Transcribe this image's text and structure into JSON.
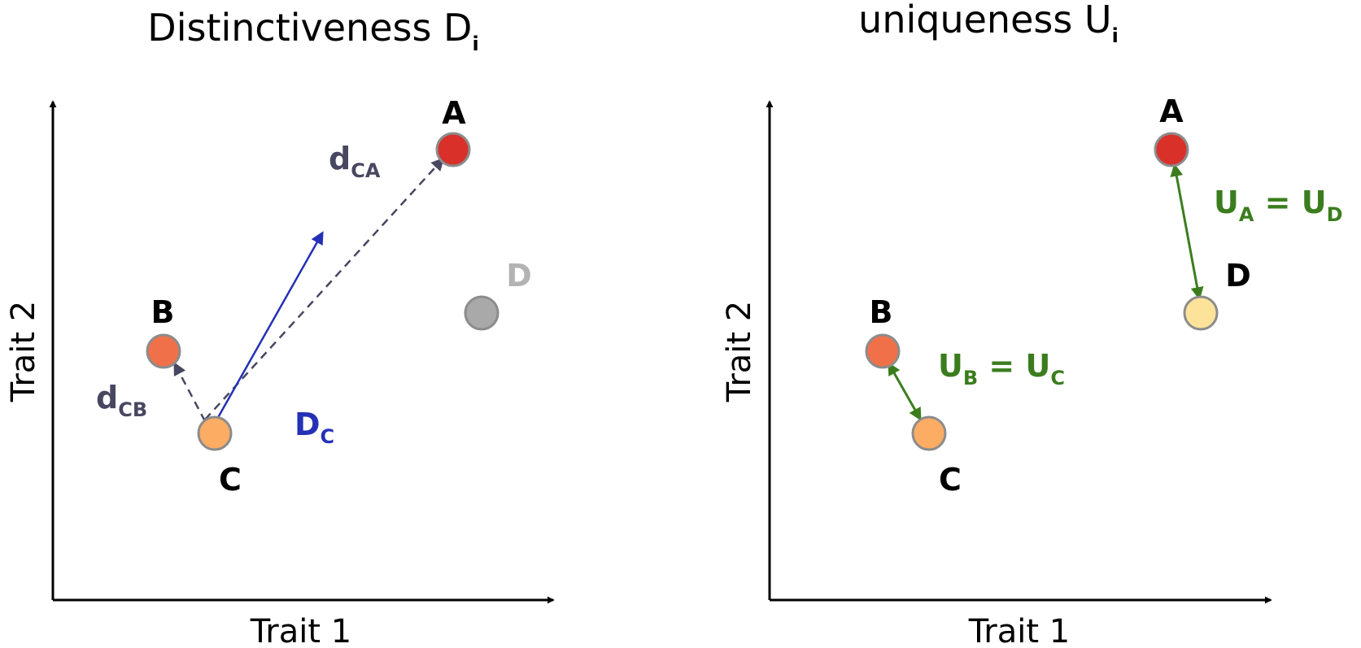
{
  "left_panel": {
    "title": {
      "main": "Distinctiveness D",
      "sub": "i"
    },
    "x_axis_label": "Trait 1",
    "y_axis_label": "Trait 2",
    "points": {
      "A": "A",
      "B": "B",
      "C": "C",
      "D": "D"
    },
    "distance_CA": {
      "main": "d",
      "sub": "CA"
    },
    "distance_CB": {
      "main": "d",
      "sub": "CB"
    },
    "distinctiveness_C": {
      "main": "D",
      "sub": "C"
    }
  },
  "right_panel": {
    "title": {
      "main": "uniqueness U",
      "sub": "i"
    },
    "x_axis_label": "Trait 1",
    "y_axis_label": "Trait 2",
    "points": {
      "A": "A",
      "B": "B",
      "C": "C",
      "D": "D"
    },
    "uniqueness_BC": {
      "left_main": "U",
      "left_sub": "B",
      "eq": " = ",
      "right_main": "U",
      "right_sub": "C"
    },
    "uniqueness_AD": {
      "left_main": "U",
      "left_sub": "A",
      "eq": " = ",
      "right_main": "U",
      "right_sub": "D"
    }
  },
  "colors": {
    "point_A": "#d9302a",
    "point_B": "#f07149",
    "point_C": "#fdac63",
    "point_D_left": "#a9a9a9",
    "point_D_right": "#fde39a",
    "point_stroke": "#8c8c8c",
    "distance_arrow": "#474761",
    "distinctiveness_arrow": "#2430b5",
    "uniqueness_arrow": "#3b7d1e",
    "label_D_left": "#b3b3b3"
  }
}
